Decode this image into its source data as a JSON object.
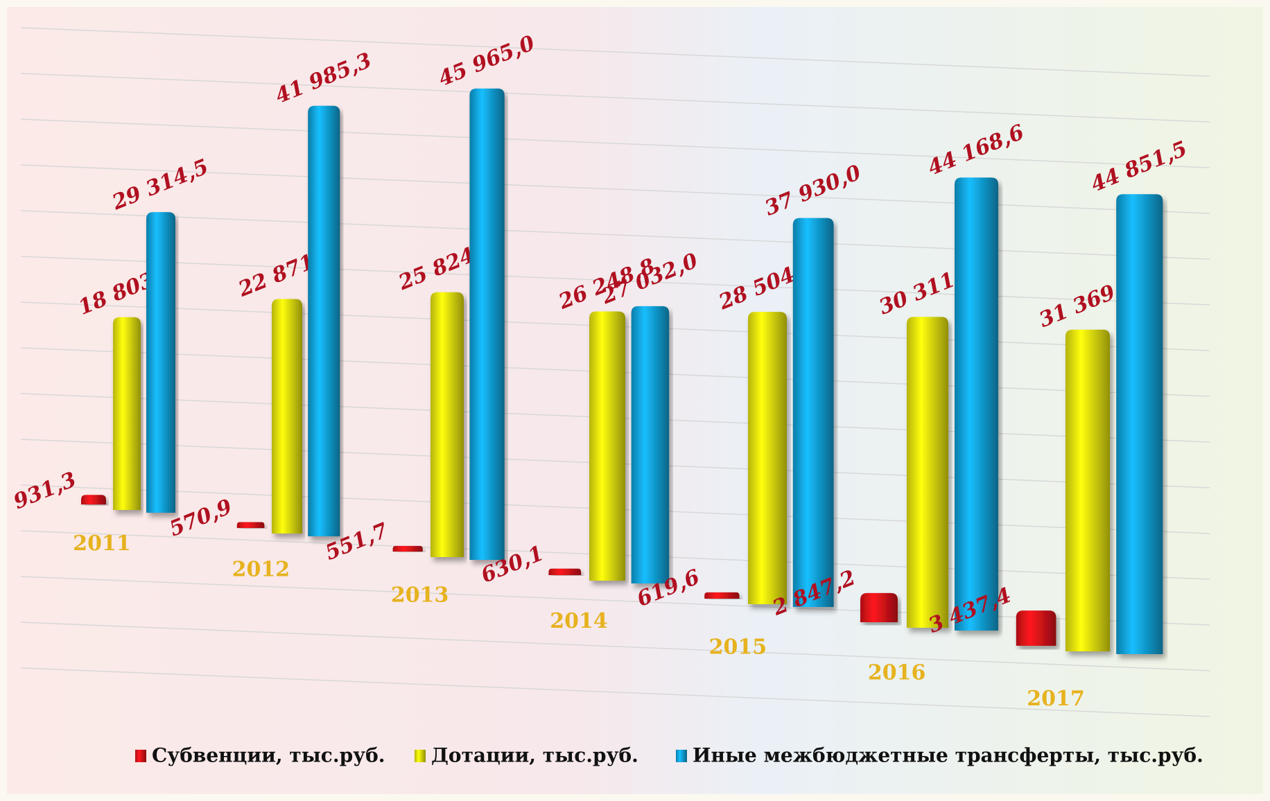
{
  "chart_data": {
    "type": "bar3d",
    "categories": [
      "2011",
      "2012",
      "2013",
      "2014",
      "2015",
      "2016",
      "2017"
    ],
    "ylim": [
      0,
      50000
    ],
    "series": [
      {
        "name": "Субвенции, тыс.руб.",
        "color": "#e4141a",
        "values": [
          931.3,
          570.9,
          551.7,
          630.1,
          619.6,
          2847.2,
          3437.4
        ],
        "value_labels": [
          "931,3",
          "570,9",
          "551,7",
          "630,1",
          "619,6",
          "2 847,2",
          "3 437,4"
        ]
      },
      {
        "name": "Дотации, тыс.руб.",
        "color": "#f2ee0a",
        "values": [
          18803.0,
          22871.7,
          25824.4,
          26248.8,
          28504.7,
          30311.0,
          31369.6
        ],
        "value_labels": [
          "18 803,0",
          "22 871,7",
          "25 824,4",
          "26 248,8",
          "28 504,7",
          "30 311,0",
          "31 369,6"
        ]
      },
      {
        "name": "Иные межбюджетные трансферты, тыс.руб.",
        "color": "#12a6e0",
        "values": [
          29314.5,
          41985.3,
          45965.0,
          27032.0,
          37930.0,
          44168.6,
          44851.5
        ],
        "value_labels": [
          "29 314,5",
          "41 985,3",
          "45 965,0",
          "27 032,0",
          "37 930,0",
          "44 168,6",
          "44 851,5"
        ]
      }
    ]
  }
}
